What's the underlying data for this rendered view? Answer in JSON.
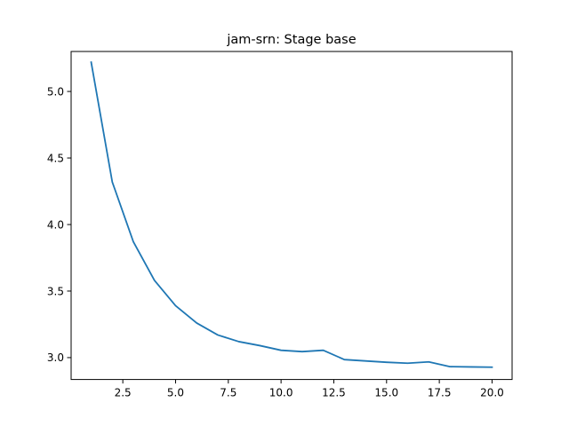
{
  "chart_data": {
    "type": "line",
    "title": "jam-srn: Stage base",
    "xlabel": "",
    "ylabel": "",
    "xlim": [
      0.05,
      20.95
    ],
    "ylim": [
      2.8355,
      5.3005
    ],
    "xticks": [
      2.5,
      5.0,
      7.5,
      10.0,
      12.5,
      15.0,
      17.5,
      20.0
    ],
    "xtick_labels": [
      "2.5",
      "5.0",
      "7.5",
      "10.0",
      "12.5",
      "15.0",
      "17.5",
      "20.0"
    ],
    "yticks": [
      3.0,
      3.5,
      4.0,
      4.5,
      5.0
    ],
    "ytick_labels": [
      "3.0",
      "3.5",
      "4.0",
      "4.5",
      "5.0"
    ],
    "grid": false,
    "legend": null,
    "series": [
      {
        "name": "Stage base",
        "color": "#1f77b4",
        "x": [
          1,
          2,
          3,
          4,
          5,
          6,
          7,
          8,
          9,
          10,
          11,
          12,
          13,
          14,
          15,
          16,
          17,
          18,
          19,
          20
        ],
        "y": [
          5.22,
          4.32,
          3.87,
          3.58,
          3.39,
          3.26,
          3.17,
          3.12,
          3.09,
          3.055,
          3.045,
          3.055,
          2.985,
          2.975,
          2.965,
          2.958,
          2.968,
          2.932,
          2.93,
          2.928
        ]
      }
    ]
  }
}
